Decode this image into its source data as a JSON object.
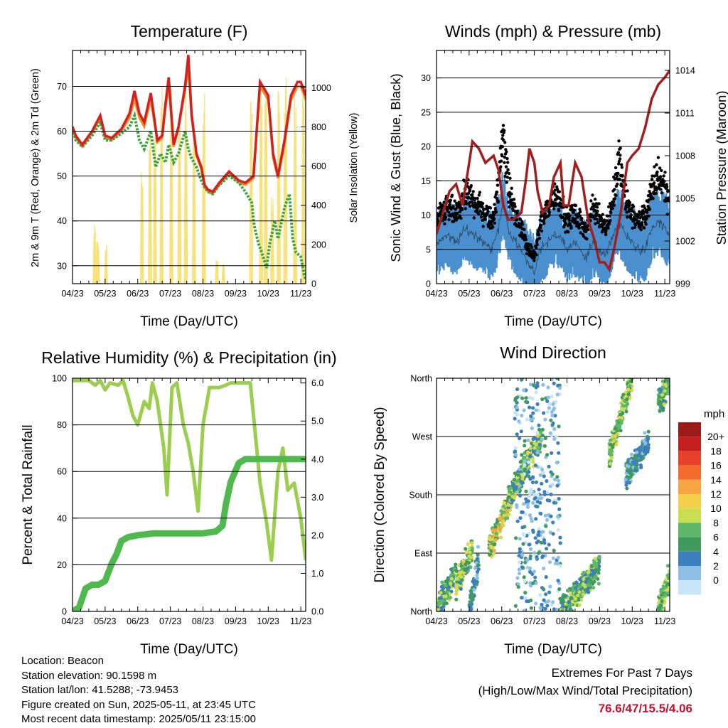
{
  "x_ticks": [
    "04/23",
    "05/23",
    "06/23",
    "07/23",
    "08/23",
    "09/23",
    "10/23",
    "11/23"
  ],
  "chart_data": [
    {
      "type": "line",
      "title": "Temperature (F)",
      "xlabel": "Time (Day/UTC)",
      "ylabel": "2m & 9m T (Red, Orange) & 2m Td (Green)",
      "y2label": "Solar Insolation (Yellow)",
      "ylim": [
        26,
        78
      ],
      "y2lim": [
        0,
        1190
      ],
      "yticks": [
        30,
        40,
        50,
        60,
        70
      ],
      "y2ticks": [
        0,
        200,
        400,
        600,
        800,
        1000
      ],
      "colors": {
        "t2m": "#d62020",
        "t9m": "#f08c28",
        "td": "#3ea33e",
        "solar": "#f7e27a"
      },
      "series": [
        {
          "name": "2m T",
          "x": [
            0,
            0.1,
            0.3,
            0.6,
            0.85,
            1.0,
            1.2,
            1.5,
            1.75,
            1.9,
            2.05,
            2.2,
            2.4,
            2.6,
            2.75,
            2.85,
            2.95,
            3.1,
            3.25,
            3.45,
            3.55,
            3.65,
            3.8,
            3.95,
            4.05,
            4.15,
            4.3,
            4.5,
            4.8,
            5.1,
            5.3,
            5.55,
            5.75,
            6.0,
            6.15,
            6.3,
            6.5,
            6.7,
            6.9,
            7.0,
            7.15
          ],
          "y": [
            61,
            59,
            57,
            60,
            63.5,
            59,
            58.5,
            60.5,
            64,
            69,
            64,
            62,
            68.5,
            58,
            59,
            66,
            72,
            57,
            61,
            70,
            77,
            64,
            55,
            52,
            48,
            47,
            46.5,
            48.5,
            51,
            49,
            48.5,
            50,
            71,
            68,
            55,
            50,
            58,
            68,
            71,
            71,
            68
          ]
        },
        {
          "name": "9m T",
          "x": [
            0,
            0.1,
            0.3,
            0.6,
            0.85,
            1.0,
            1.2,
            1.5,
            1.75,
            1.9,
            2.05,
            2.2,
            2.4,
            2.6,
            2.75,
            2.85,
            2.95,
            3.1,
            3.25,
            3.45,
            3.55,
            3.65,
            3.8,
            3.95,
            4.05,
            4.15,
            4.3,
            4.5,
            4.8,
            5.1,
            5.3,
            5.55,
            5.75,
            6.0,
            6.15,
            6.3,
            6.5,
            6.7,
            6.9,
            7.0,
            7.15
          ],
          "y": [
            60.5,
            58.5,
            56.5,
            59.5,
            63,
            58.5,
            58,
            60,
            63,
            67,
            63,
            61,
            67,
            57.5,
            58.5,
            65,
            70,
            56.5,
            60.5,
            69,
            74,
            63,
            54.5,
            51.5,
            47.5,
            46.5,
            46,
            48,
            50.5,
            48.5,
            48,
            49.5,
            70,
            67,
            54,
            49.5,
            57,
            67,
            70,
            70,
            67
          ]
        },
        {
          "name": "2m Td",
          "x": [
            0,
            0.1,
            0.3,
            0.6,
            0.85,
            1.0,
            1.2,
            1.5,
            1.75,
            1.9,
            2.05,
            2.2,
            2.4,
            2.55,
            2.7,
            2.85,
            2.95,
            3.1,
            3.25,
            3.45,
            3.55,
            3.65,
            3.8,
            3.95,
            4.05,
            4.15,
            4.3,
            4.5,
            4.8,
            5.1,
            5.3,
            5.5,
            5.55,
            5.6,
            5.7,
            5.8,
            5.95,
            6.05,
            6.2,
            6.3,
            6.5,
            6.65,
            6.75,
            6.85,
            7.0,
            7.1,
            7.15
          ],
          "y": [
            60.5,
            58,
            56.5,
            59,
            62,
            58,
            58,
            59.5,
            61,
            63.5,
            58,
            56,
            60,
            52,
            55,
            53,
            57,
            53,
            55,
            60,
            56,
            54,
            52,
            49,
            47.5,
            46.5,
            46,
            48,
            50,
            48.5,
            46.5,
            44,
            40,
            38,
            35,
            33,
            29.5,
            35,
            40,
            36,
            43,
            46,
            36,
            33,
            32,
            28,
            27
          ]
        },
        {
          "name": "Solar Insolation",
          "axis": "y2",
          "days": [
            [
              0.65,
              300
            ],
            [
              0.75,
              220
            ],
            [
              1.0,
              210
            ],
            [
              2.1,
              590
            ],
            [
              2.35,
              810
            ],
            [
              2.5,
              900
            ],
            [
              2.7,
              1040
            ],
            [
              3.0,
              1040
            ],
            [
              3.25,
              980
            ],
            [
              3.45,
              1030
            ],
            [
              3.7,
              920
            ],
            [
              4.0,
              1010
            ],
            [
              4.4,
              130
            ],
            [
              4.6,
              100
            ],
            [
              5.45,
              1020
            ],
            [
              5.75,
              1040
            ],
            [
              5.9,
              1030
            ],
            [
              6.1,
              450
            ],
            [
              6.3,
              1020
            ],
            [
              6.5,
              1050
            ],
            [
              6.8,
              1020
            ],
            [
              7.05,
              1040
            ]
          ]
        }
      ]
    },
    {
      "type": "line",
      "title": "Winds (mph) & Pressure (mb)",
      "xlabel": "Time (Day/UTC)",
      "ylabel": "Sonic Wind & Gust (Blue, Black)",
      "y2label": "Station Pressure (Maroon)",
      "ylim": [
        0,
        34
      ],
      "y2lim": [
        999,
        1015.4
      ],
      "yticks": [
        0,
        5,
        10,
        15,
        20,
        25,
        30
      ],
      "y2ticks": [
        999,
        1002,
        1005,
        1008,
        1011,
        1014
      ],
      "colors": {
        "wind": "#4a90cf",
        "gust": "#000000",
        "pressure": "#a31f1f"
      },
      "series": [
        {
          "name": "Sonic Wind",
          "x": [
            0,
            0.3,
            0.6,
            0.9,
            1.2,
            1.5,
            1.7,
            1.9,
            2.05,
            2.2,
            2.4,
            2.6,
            2.8,
            3.0,
            3.2,
            3.4,
            3.6,
            3.8,
            4.0,
            4.2,
            4.4,
            4.6,
            4.8,
            5.0,
            5.2,
            5.4,
            5.6,
            5.8,
            6.0,
            6.2,
            6.4,
            6.6,
            6.8,
            7.0,
            7.15
          ],
          "y": [
            6,
            7,
            6,
            8,
            7,
            6,
            5,
            8,
            12,
            8,
            6,
            5,
            3,
            2,
            5,
            6,
            7,
            7,
            5,
            6,
            5,
            4,
            6,
            5,
            4,
            7,
            9,
            7,
            6,
            5,
            5,
            8,
            9,
            8,
            7
          ]
        },
        {
          "name": "Gust",
          "x": [
            0,
            0.3,
            0.6,
            0.9,
            1.2,
            1.5,
            1.7,
            1.9,
            2.05,
            2.2,
            2.4,
            2.6,
            2.8,
            3.0,
            3.2,
            3.4,
            3.6,
            3.8,
            4.0,
            4.2,
            4.4,
            4.6,
            4.8,
            5.0,
            5.2,
            5.4,
            5.6,
            5.8,
            6.0,
            6.2,
            6.4,
            6.6,
            6.8,
            7.0,
            7.15
          ],
          "y": [
            9,
            11,
            10,
            13,
            12,
            10,
            9,
            14,
            23,
            14,
            10,
            8,
            5,
            4,
            9,
            11,
            13,
            12,
            9,
            10,
            9,
            8,
            11,
            10,
            8,
            12,
            18,
            12,
            10,
            9,
            10,
            13,
            16,
            14,
            12
          ]
        },
        {
          "name": "Station Pressure",
          "axis": "y2",
          "x": [
            0,
            0.2,
            0.4,
            0.6,
            0.8,
            1.0,
            1.1,
            1.3,
            1.5,
            1.75,
            1.9,
            2.05,
            2.2,
            2.35,
            2.6,
            2.75,
            2.85,
            3.0,
            3.1,
            3.25,
            3.45,
            3.6,
            3.8,
            3.9,
            4.05,
            4.25,
            4.45,
            4.65,
            4.85,
            5.0,
            5.15,
            5.3,
            5.45,
            5.65,
            5.85,
            6.0,
            6.2,
            6.4,
            6.6,
            6.8,
            7.0,
            7.15
          ],
          "y": [
            1002.5,
            1004,
            1005.5,
            1006,
            1004.5,
            1007.5,
            1009,
            1008.5,
            1007.5,
            1008,
            1007,
            1004.5,
            1003.5,
            1003.5,
            1004,
            1006.5,
            1008.5,
            1007.5,
            1005.5,
            1004,
            1004.5,
            1006.5,
            1007.5,
            1004.5,
            1004.5,
            1007.5,
            1006.5,
            1003.5,
            1002,
            1000.5,
            1000.5,
            1000,
            1001.5,
            1004,
            1007.5,
            1008,
            1008.5,
            1010,
            1012,
            1013,
            1013.5,
            1014
          ]
        }
      ]
    },
    {
      "type": "line",
      "title": "Relative Humidity (%) & Precipitation (in)",
      "xlabel": "Time (Day/UTC)",
      "ylabel": "Percent & Total Rainfall",
      "ylim": [
        0,
        100
      ],
      "y2lim": [
        0,
        6.125
      ],
      "yticks": [
        0,
        20,
        40,
        60,
        80,
        100
      ],
      "y2ticks": [
        "0.0",
        "1.0",
        "2.0",
        "3.0",
        "4.0",
        "5.0",
        "6.0"
      ],
      "colors": {
        "rh": "#9bce4f",
        "precip": "#4fb84f"
      },
      "series": [
        {
          "name": "Relative Humidity",
          "x": [
            0,
            0.5,
            0.7,
            0.85,
            1.0,
            1.15,
            1.4,
            1.55,
            1.7,
            1.85,
            2.0,
            2.2,
            2.35,
            2.45,
            2.6,
            2.8,
            2.9,
            3.05,
            3.2,
            3.4,
            3.55,
            3.7,
            3.85,
            4.0,
            4.2,
            4.5,
            4.7,
            4.85,
            5.05,
            5.25,
            5.35,
            5.45,
            5.55,
            5.75,
            5.95,
            6.1,
            6.3,
            6.45,
            6.6,
            6.8,
            7.0,
            7.15
          ],
          "y": [
            99,
            99,
            97,
            99,
            95,
            98,
            97,
            99,
            92,
            84,
            80,
            90,
            87,
            98,
            90,
            70,
            50,
            96,
            98,
            80,
            72,
            60,
            43,
            80,
            96,
            96,
            97,
            98,
            98,
            98,
            98,
            98,
            84,
            55,
            38,
            22,
            60,
            70,
            52,
            55,
            40,
            22
          ]
        },
        {
          "name": "Total Rainfall",
          "axis": "y2",
          "x": [
            0,
            0.2,
            0.4,
            0.6,
            0.8,
            1.0,
            1.2,
            1.35,
            1.5,
            1.7,
            2.0,
            2.5,
            3.0,
            3.5,
            4.0,
            4.4,
            4.6,
            4.7,
            4.85,
            5.0,
            5.1,
            5.3,
            5.6,
            6.0,
            6.5,
            7.0,
            7.15
          ],
          "y": [
            0,
            0.1,
            0.6,
            0.7,
            0.7,
            0.8,
            1.25,
            1.5,
            1.85,
            1.95,
            2.0,
            2.05,
            2.05,
            2.05,
            2.05,
            2.1,
            2.25,
            2.8,
            3.4,
            3.7,
            3.9,
            4.0,
            4.0,
            4.0,
            4.0,
            4.0,
            4.0
          ]
        }
      ]
    },
    {
      "type": "scatter",
      "title": "Wind Direction",
      "xlabel": "Time (Day/UTC)",
      "ylabel": "Direction (Colored By Speed)",
      "yticks": [
        "North",
        "East",
        "South",
        "West",
        "North"
      ],
      "ylim": [
        0,
        360
      ],
      "legend_title": "mph",
      "legend_labels": [
        "20+",
        "18",
        "16",
        "14",
        "12",
        "10",
        "8",
        "6",
        "4",
        "2",
        "0"
      ],
      "legend_colors": [
        "#9b1b1b",
        "#c41f1f",
        "#e6412b",
        "#f26a2c",
        "#f7a543",
        "#f2d04a",
        "#c9dd50",
        "#5fb86a",
        "#3f9a5c",
        "#3c7fbe",
        "#8bbfe6",
        "#c6e5f7"
      ],
      "clusters": [
        {
          "x": [
            0,
            0.6
          ],
          "dir": [
            0,
            60
          ],
          "speed": [
            3,
            10
          ]
        },
        {
          "x": [
            0.6,
            1.1
          ],
          "dir": [
            40,
            95
          ],
          "speed": [
            4,
            12
          ]
        },
        {
          "x": [
            1.0,
            1.3
          ],
          "dir": [
            5,
            80
          ],
          "speed": [
            2,
            7
          ]
        },
        {
          "x": [
            1.6,
            2.3
          ],
          "dir": [
            95,
            175
          ],
          "speed": [
            5,
            15
          ]
        },
        {
          "x": [
            2.2,
            3.2
          ],
          "dir": [
            170,
            270
          ],
          "speed": [
            4,
            12
          ]
        },
        {
          "x": [
            2.4,
            3.8
          ],
          "dir": [
            0,
            360
          ],
          "speed": [
            0,
            6
          ]
        },
        {
          "x": [
            3.8,
            5.0
          ],
          "dir": [
            0,
            70
          ],
          "speed": [
            3,
            11
          ]
        },
        {
          "x": [
            5.3,
            6.0
          ],
          "dir": [
            240,
            360
          ],
          "speed": [
            5,
            12
          ]
        },
        {
          "x": [
            5.8,
            6.5
          ],
          "dir": [
            210,
            260
          ],
          "speed": [
            2,
            7
          ]
        },
        {
          "x": [
            6.8,
            7.2
          ],
          "dir": [
            0,
            60
          ],
          "speed": [
            5,
            11
          ]
        },
        {
          "x": [
            6.8,
            7.2
          ],
          "dir": [
            320,
            360
          ],
          "speed": [
            4,
            10
          ]
        }
      ]
    }
  ],
  "info": {
    "location": "Location: Beacon",
    "elevation": "Station elevation: 90.1598 m",
    "latlon": "Station lat/lon: 41.5288; -73.9453",
    "created": "Figure created on Sun, 2025-05-11, at 23:45 UTC",
    "timestamp": "Most recent data timestamp: 2025/05/11 23:15:00"
  },
  "extremes": {
    "line1": "Extremes For Past 7 Days",
    "line2": "(High/Low/Max Wind/Total Precipitation)",
    "values": "76.6/47/15.5/4.06"
  }
}
